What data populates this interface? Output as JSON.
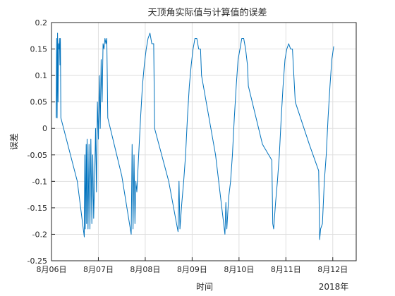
{
  "chart_data": {
    "type": "line",
    "title": "天顶角实际值与计算值的误差",
    "xlabel": "时间",
    "ylabel": "误差",
    "ylim": [
      -0.25,
      0.2
    ],
    "yticks": [
      -0.25,
      -0.2,
      -0.15,
      -0.1,
      -0.05,
      0,
      0.05,
      0.1,
      0.15,
      0.2
    ],
    "ytick_labels": [
      "-0.25",
      "-0.2",
      "-0.15",
      "-0.1",
      "-0.05",
      "0",
      "0.05",
      "0.1",
      "0.15",
      "0.2"
    ],
    "xlim": [
      0,
      6.5
    ],
    "xticks": [
      0,
      1,
      2,
      3,
      4,
      5,
      6
    ],
    "xtick_labels": [
      "8月06日",
      "8月07日",
      "8月08日",
      "8月09日",
      "8月10日",
      "8月11日",
      "8月12日"
    ],
    "x_secondary_label": "2018年",
    "grid": true,
    "line_color": "#0072BD",
    "series": [
      {
        "name": "",
        "points": [
          [
            0.1,
            0.02
          ],
          [
            0.11,
            0.17
          ],
          [
            0.12,
            0.02
          ],
          [
            0.13,
            0.18
          ],
          [
            0.14,
            0.05
          ],
          [
            0.15,
            0.16
          ],
          [
            0.16,
            0.15
          ],
          [
            0.17,
            0.17
          ],
          [
            0.18,
            0.12
          ],
          [
            0.19,
            0.17
          ],
          [
            0.2,
            0.02
          ],
          [
            0.55,
            -0.1
          ],
          [
            0.7,
            -0.205
          ],
          [
            0.71,
            -0.05
          ],
          [
            0.72,
            -0.19
          ],
          [
            0.74,
            -0.03
          ],
          [
            0.75,
            -0.18
          ],
          [
            0.76,
            -0.02
          ],
          [
            0.78,
            -0.19
          ],
          [
            0.8,
            -0.03
          ],
          [
            0.82,
            -0.19
          ],
          [
            0.84,
            -0.02
          ],
          [
            0.86,
            -0.18
          ],
          [
            0.88,
            -0.05
          ],
          [
            0.9,
            -0.17
          ],
          [
            0.92,
            -0.1
          ],
          [
            0.94,
            0.0
          ],
          [
            0.96,
            -0.12
          ],
          [
            0.98,
            0.05
          ],
          [
            1.0,
            -0.02
          ],
          [
            1.02,
            0.1
          ],
          [
            1.04,
            0.0
          ],
          [
            1.06,
            0.13
          ],
          [
            1.08,
            0.05
          ],
          [
            1.1,
            0.16
          ],
          [
            1.12,
            0.15
          ],
          [
            1.14,
            0.17
          ],
          [
            1.16,
            0.16
          ],
          [
            1.18,
            0.17
          ],
          [
            1.2,
            0.02
          ],
          [
            1.5,
            -0.09
          ],
          [
            1.7,
            -0.2
          ],
          [
            1.72,
            -0.03
          ],
          [
            1.74,
            -0.19
          ],
          [
            1.76,
            -0.05
          ],
          [
            1.78,
            -0.18
          ],
          [
            1.8,
            -0.1
          ],
          [
            1.82,
            -0.12
          ],
          [
            1.86,
            -0.05
          ],
          [
            1.9,
            0.02
          ],
          [
            1.94,
            0.08
          ],
          [
            1.98,
            0.12
          ],
          [
            2.02,
            0.15
          ],
          [
            2.06,
            0.17
          ],
          [
            2.1,
            0.18
          ],
          [
            2.14,
            0.16
          ],
          [
            2.18,
            0.16
          ],
          [
            2.2,
            0.0
          ],
          [
            2.5,
            -0.1
          ],
          [
            2.7,
            -0.195
          ],
          [
            2.72,
            -0.1
          ],
          [
            2.74,
            -0.19
          ],
          [
            2.78,
            -0.14
          ],
          [
            2.82,
            -0.1
          ],
          [
            2.86,
            -0.05
          ],
          [
            2.9,
            0.02
          ],
          [
            2.94,
            0.08
          ],
          [
            2.98,
            0.12
          ],
          [
            3.02,
            0.15
          ],
          [
            3.06,
            0.17
          ],
          [
            3.1,
            0.17
          ],
          [
            3.14,
            0.15
          ],
          [
            3.18,
            0.15
          ],
          [
            3.2,
            0.1
          ],
          [
            3.5,
            -0.05
          ],
          [
            3.7,
            -0.2
          ],
          [
            3.72,
            -0.14
          ],
          [
            3.74,
            -0.19
          ],
          [
            3.78,
            -0.13
          ],
          [
            3.82,
            -0.1
          ],
          [
            3.86,
            -0.05
          ],
          [
            3.9,
            0.02
          ],
          [
            3.94,
            0.08
          ],
          [
            3.98,
            0.13
          ],
          [
            4.02,
            0.15
          ],
          [
            4.06,
            0.17
          ],
          [
            4.1,
            0.17
          ],
          [
            4.14,
            0.15
          ],
          [
            4.18,
            0.12
          ],
          [
            4.2,
            0.08
          ],
          [
            4.5,
            -0.03
          ],
          [
            4.7,
            -0.06
          ],
          [
            4.72,
            -0.18
          ],
          [
            4.74,
            -0.19
          ],
          [
            4.78,
            -0.14
          ],
          [
            4.82,
            -0.1
          ],
          [
            4.86,
            -0.05
          ],
          [
            4.9,
            0.02
          ],
          [
            4.94,
            0.08
          ],
          [
            4.98,
            0.13
          ],
          [
            5.02,
            0.15
          ],
          [
            5.06,
            0.16
          ],
          [
            5.1,
            0.15
          ],
          [
            5.14,
            0.15
          ],
          [
            5.2,
            0.05
          ],
          [
            5.5,
            -0.03
          ],
          [
            5.7,
            -0.08
          ],
          [
            5.72,
            -0.21
          ],
          [
            5.74,
            -0.19
          ],
          [
            5.78,
            -0.18
          ],
          [
            5.82,
            -0.1
          ],
          [
            5.86,
            -0.05
          ],
          [
            5.9,
            0.02
          ],
          [
            5.94,
            0.08
          ],
          [
            5.98,
            0.13
          ],
          [
            6.02,
            0.155
          ]
        ]
      }
    ]
  }
}
